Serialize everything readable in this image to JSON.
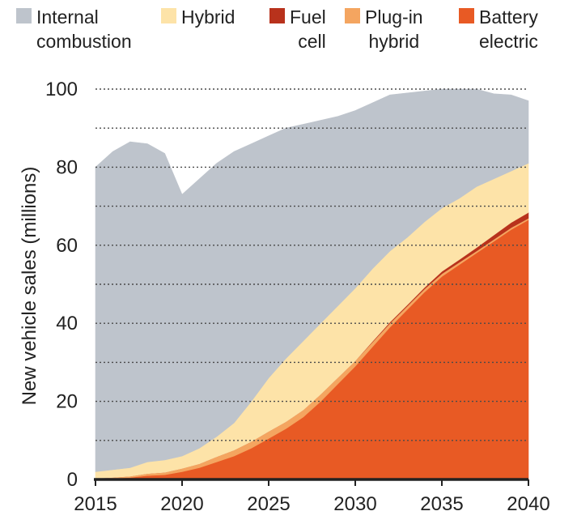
{
  "chart_data": {
    "type": "area",
    "stacked": true,
    "x": [
      2015,
      2016,
      2017,
      2018,
      2019,
      2020,
      2021,
      2022,
      2023,
      2024,
      2025,
      2026,
      2027,
      2028,
      2029,
      2030,
      2031,
      2032,
      2033,
      2034,
      2035,
      2036,
      2037,
      2038,
      2039,
      2040
    ],
    "series": [
      {
        "name": "Battery electric",
        "color": "#e85a24",
        "values": [
          0.2,
          0.3,
          0.5,
          1.0,
          1.2,
          2.0,
          3.0,
          4.5,
          6.0,
          8.0,
          10.5,
          13.0,
          16.0,
          20.0,
          24.5,
          29.0,
          34.0,
          39.0,
          43.5,
          48.0,
          52.0,
          55.0,
          58.0,
          61.0,
          64.0,
          66.5
        ]
      },
      {
        "name": "Plug-in hybrid",
        "color": "#f4a560",
        "values": [
          0.1,
          0.2,
          0.3,
          0.5,
          0.6,
          0.8,
          1.0,
          1.3,
          1.5,
          1.7,
          1.8,
          1.8,
          1.8,
          1.8,
          1.6,
          1.4,
          1.2,
          1.0,
          0.9,
          0.8,
          0.7,
          0.6,
          0.5,
          0.5,
          0.5,
          0.4
        ]
      },
      {
        "name": "Fuel cell",
        "color": "#b8321c",
        "values": [
          0,
          0,
          0,
          0,
          0,
          0,
          0,
          0,
          0,
          0,
          0,
          0,
          0,
          0,
          0,
          0,
          0.2,
          0.3,
          0.3,
          0.4,
          0.6,
          0.7,
          0.9,
          1.1,
          1.3,
          1.5
        ]
      },
      {
        "name": "Hybrid",
        "color": "#fde3a8",
        "values": [
          1.7,
          2.0,
          2.2,
          3.0,
          3.2,
          3.2,
          4.0,
          5.2,
          7.0,
          10.3,
          13.7,
          16.2,
          17.7,
          18.2,
          18.4,
          18.6,
          18.6,
          18.2,
          17.3,
          16.8,
          16.2,
          15.7,
          15.6,
          14.4,
          13.2,
          12.6
        ]
      },
      {
        "name": "Internal combustion",
        "color": "#bec4cc",
        "values": [
          78.0,
          81.5,
          83.5,
          81.5,
          78.5,
          67.0,
          69.0,
          70.0,
          69.5,
          66.0,
          62.0,
          59.0,
          55.5,
          52.0,
          48.5,
          45.5,
          42.5,
          40.0,
          37.0,
          33.5,
          30.5,
          28.0,
          25.0,
          21.8,
          19.5,
          16.0
        ]
      }
    ],
    "xlim": [
      2015,
      2040
    ],
    "ylim": [
      0,
      100
    ],
    "xticks": [
      2015,
      2020,
      2025,
      2030,
      2035,
      2040
    ],
    "yticks": [
      0,
      20,
      40,
      60,
      80,
      100
    ],
    "gridlines": [
      10,
      20,
      30,
      40,
      50,
      60,
      70,
      80,
      90,
      100
    ],
    "ylabel": "New vehicle sales (millions)",
    "xlabel": "",
    "title": ""
  },
  "legend": {
    "internal_combustion": {
      "line1": "Internal",
      "line2": "combustion",
      "color": "#bec4cc"
    },
    "hybrid": {
      "line1": "Hybrid",
      "color": "#fde3a8"
    },
    "fuel_cell": {
      "line1": "Fuel",
      "line2": "cell",
      "color": "#b8321c"
    },
    "plug_in_hybrid": {
      "line1": "Plug-in",
      "line2": "hybrid",
      "color": "#f4a560"
    },
    "battery_electric": {
      "line1": "Battery",
      "line2": "electric",
      "color": "#e85a24"
    }
  }
}
